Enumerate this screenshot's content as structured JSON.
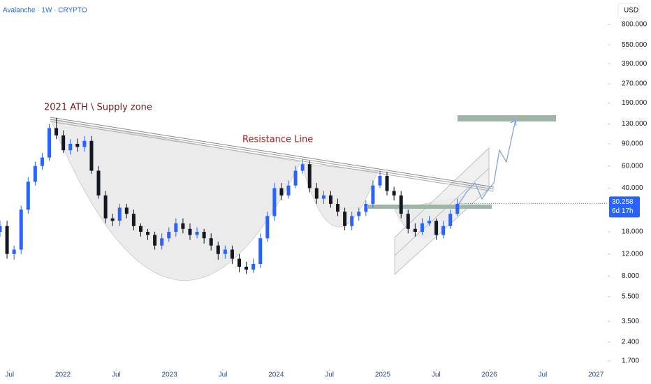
{
  "chart_data": {
    "type": "candlestick",
    "title": "Avalanche · 1W · CRYPTO",
    "currency": "USD",
    "annotations": [
      "2021 ATH \\ Supply zone",
      "Resistance Line"
    ],
    "log_scale": true,
    "up_color": "#2962ff",
    "down_color": "#131722",
    "x": [
      2021.41,
      2021.476,
      2021.542,
      2021.608,
      2021.674,
      2021.74,
      2021.806,
      2021.872,
      2021.938,
      2022.004,
      2022.07,
      2022.136,
      2022.202,
      2022.268,
      2022.334,
      2022.4,
      2022.466,
      2022.532,
      2022.598,
      2022.664,
      2022.73,
      2022.796,
      2022.862,
      2022.928,
      2022.994,
      2023.06,
      2023.126,
      2023.192,
      2023.258,
      2023.324,
      2023.39,
      2023.456,
      2023.522,
      2023.588,
      2023.654,
      2023.72,
      2023.786,
      2023.852,
      2023.918,
      2023.984,
      2024.05,
      2024.116,
      2024.182,
      2024.248,
      2024.314,
      2024.38,
      2024.446,
      2024.512,
      2024.578,
      2024.644,
      2024.71,
      2024.776,
      2024.842,
      2024.908,
      2024.974,
      2025.04,
      2025.106,
      2025.172,
      2025.238,
      2025.304,
      2025.37,
      2025.436,
      2025.502,
      2025.568,
      2025.634,
      2025.7
    ],
    "open": [
      18,
      20,
      12,
      13,
      27,
      45,
      60,
      70,
      120,
      105,
      80,
      90,
      85,
      95,
      55,
      35,
      23,
      22,
      28,
      25,
      20,
      18,
      17,
      14,
      16,
      18,
      21,
      19,
      17,
      18,
      16,
      14,
      12,
      13,
      11,
      9.5,
      9,
      10,
      16,
      24,
      40,
      35,
      42,
      55,
      62,
      40,
      33,
      35,
      30,
      26,
      20,
      24,
      26,
      30,
      42,
      50,
      38,
      35,
      25,
      19,
      18,
      21,
      22,
      17,
      20,
      25
    ],
    "high": [
      22,
      22,
      14,
      29,
      49,
      65,
      76,
      130,
      145,
      115,
      98,
      99,
      104,
      104,
      60,
      38,
      25,
      30,
      30,
      27,
      21,
      19,
      18,
      17.5,
      19.5,
      23,
      23,
      21,
      19.5,
      19,
      17.5,
      15,
      14,
      14,
      12,
      10.4,
      11,
      17.5,
      26,
      44,
      44,
      46,
      60,
      68,
      66,
      44,
      38,
      38,
      33,
      28,
      26,
      28,
      32,
      46,
      55,
      54,
      41,
      38,
      27,
      21,
      23,
      24,
      23,
      22,
      27,
      33
    ],
    "low": [
      16.5,
      11,
      10.8,
      12,
      25,
      42,
      56,
      66,
      98,
      76,
      74,
      78,
      78,
      52,
      33,
      21,
      20,
      20,
      23,
      18.5,
      16.5,
      15.5,
      13,
      13,
      15,
      16.5,
      17.5,
      15.5,
      16,
      14.5,
      12.8,
      10.8,
      11,
      10,
      8.6,
      8.3,
      8.5,
      9.3,
      15,
      22,
      32,
      33,
      40,
      52,
      37,
      30,
      30,
      28,
      24,
      18.5,
      18.5,
      22,
      24,
      28,
      40,
      35,
      32,
      23,
      17.5,
      16.5,
      17,
      20,
      15.5,
      16,
      19,
      24
    ],
    "close": [
      20,
      12,
      13,
      27,
      45,
      60,
      70,
      120,
      105,
      80,
      90,
      85,
      95,
      55,
      35,
      23,
      22,
      28,
      25,
      20,
      18,
      17,
      14,
      16,
      18,
      21,
      19,
      17,
      18,
      16,
      14,
      12,
      13,
      11,
      9.5,
      9,
      10,
      16,
      24,
      40,
      35,
      42,
      55,
      62,
      40,
      33,
      35,
      30,
      26,
      20,
      24,
      26,
      30,
      42,
      50,
      38,
      35,
      25,
      19,
      18,
      21,
      22,
      17,
      20,
      25,
      30
    ],
    "last_price": 30.258,
    "countdown": "6d 17h",
    "xlim": [
      2021.41,
      2027.11
    ],
    "xticks": [
      {
        "value": 2021.5,
        "label": "Jul"
      },
      {
        "value": 2022.0,
        "label": "2022"
      },
      {
        "value": 2022.5,
        "label": "Jul"
      },
      {
        "value": 2023.0,
        "label": "2023"
      },
      {
        "value": 2023.5,
        "label": "Jul"
      },
      {
        "value": 2024.0,
        "label": "2024"
      },
      {
        "value": 2024.5,
        "label": "Jul"
      },
      {
        "value": 2025.0,
        "label": "2025"
      },
      {
        "value": 2025.5,
        "label": "Jul"
      },
      {
        "value": 2026.0,
        "label": "2026"
      },
      {
        "value": 2026.5,
        "label": "Jul"
      },
      {
        "value": 2027.0,
        "label": "2027"
      }
    ],
    "ylim": [
      1.53,
      1250
    ],
    "yticks": [
      {
        "value": 800,
        "label": "800.000"
      },
      {
        "value": 550,
        "label": "550.000"
      },
      {
        "value": 390,
        "label": "390.000"
      },
      {
        "value": 270,
        "label": "270.000"
      },
      {
        "value": 190,
        "label": "190.000"
      },
      {
        "value": 130,
        "label": "130.000"
      },
      {
        "value": 90,
        "label": "90.000"
      },
      {
        "value": 60,
        "label": "60.000"
      },
      {
        "value": 40,
        "label": "40.000"
      },
      {
        "value": 18,
        "label": "18.000"
      },
      {
        "value": 12,
        "label": "12.000"
      },
      {
        "value": 8,
        "label": "8.000"
      },
      {
        "value": 5.5,
        "label": "5.500"
      },
      {
        "value": 3.5,
        "label": "3.500"
      },
      {
        "value": 2.4,
        "label": "2.400"
      },
      {
        "value": 1.7,
        "label": "1.700"
      }
    ]
  }
}
